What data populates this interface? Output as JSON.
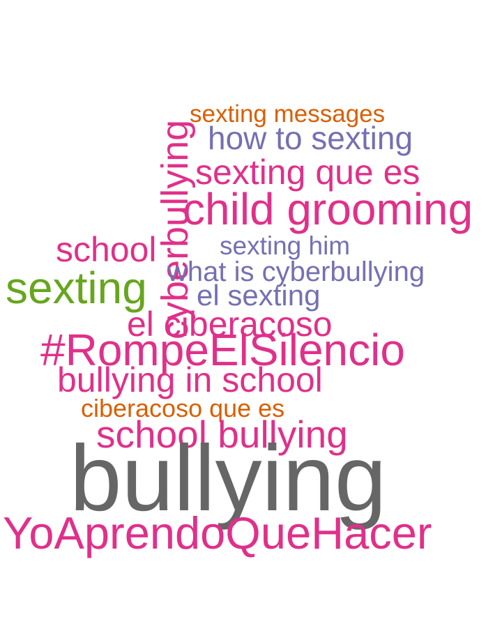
{
  "colors": {
    "pink": "#e0308a",
    "orange": "#d95f02",
    "purple": "#7570b3",
    "green": "#66a61e",
    "gray": "#666666"
  },
  "words": {
    "cyberbullying": {
      "text": "cyberbullying",
      "color": "pink",
      "orientation": "vertical"
    },
    "sexting_messages": {
      "text": "sexting messages",
      "color": "orange"
    },
    "how_to_sexting": {
      "text": "how to sexting",
      "color": "purple"
    },
    "sexting_que_es": {
      "text": "sexting que es",
      "color": "pink"
    },
    "child_grooming": {
      "text": "child grooming",
      "color": "pink"
    },
    "school": {
      "text": "school",
      "color": "pink"
    },
    "sexting_him": {
      "text": "sexting him",
      "color": "purple"
    },
    "sexting": {
      "text": "sexting",
      "color": "green"
    },
    "what_is_cyberbullying": {
      "text": "what is cyberbullying",
      "color": "purple"
    },
    "el_sexting": {
      "text": "el sexting",
      "color": "purple"
    },
    "el_ciberacoso": {
      "text": "el ciberacoso",
      "color": "pink"
    },
    "rompe_el_silencio": {
      "text": "#RompeElSilencio",
      "color": "pink"
    },
    "bullying_in_school": {
      "text": "bullying in school",
      "color": "pink"
    },
    "ciberacoso_que_es": {
      "text": "ciberacoso que es",
      "color": "orange"
    },
    "school_bullying": {
      "text": "school bullying",
      "color": "pink"
    },
    "bullying": {
      "text": "bullying",
      "color": "gray"
    },
    "yo_aprendo": {
      "text": "YoAprendoQueHacer",
      "color": "pink"
    }
  }
}
